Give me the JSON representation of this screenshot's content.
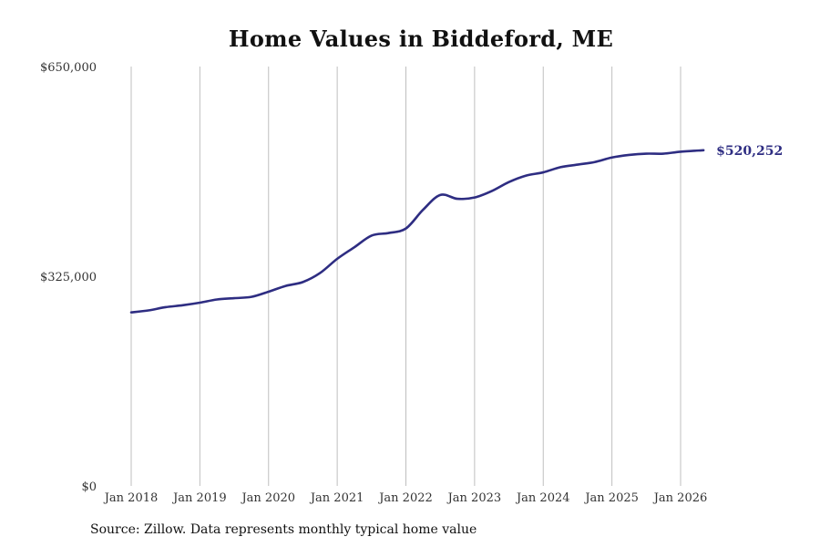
{
  "chart_data": {
    "type": "line",
    "title": "Home Values in Biddeford, ME",
    "source": "Source: Zillow. Data represents monthly typical home value",
    "y_axis": {
      "min": 0,
      "max": 650000,
      "ticks": [
        0,
        325000,
        650000
      ],
      "tick_labels": [
        "$0",
        "$325,000",
        "$650,000"
      ]
    },
    "x_axis": {
      "tick_labels": [
        "Jan 2018",
        "Jan 2019",
        "Jan 2020",
        "Jan 2021",
        "Jan 2022",
        "Jan 2023",
        "Jan 2024",
        "Jan 2025",
        "Jan 2026"
      ],
      "tick_dates": [
        "2018-01",
        "2019-01",
        "2020-01",
        "2021-01",
        "2022-01",
        "2023-01",
        "2024-01",
        "2025-01",
        "2026-01"
      ]
    },
    "grid": {
      "vertical": true,
      "horizontal": false
    },
    "colors": {
      "line": "#2e2d82",
      "grid": "#bfbfbf",
      "text": "#333333"
    },
    "series": [
      {
        "name": "",
        "end_label": "$520,252",
        "points": [
          {
            "x": "2018-01",
            "y": 269000
          },
          {
            "x": "2018-04",
            "y": 272000
          },
          {
            "x": "2018-07",
            "y": 277000
          },
          {
            "x": "2018-10",
            "y": 280000
          },
          {
            "x": "2019-01",
            "y": 284000
          },
          {
            "x": "2019-04",
            "y": 289000
          },
          {
            "x": "2019-07",
            "y": 291000
          },
          {
            "x": "2019-10",
            "y": 293000
          },
          {
            "x": "2020-01",
            "y": 301000
          },
          {
            "x": "2020-04",
            "y": 310000
          },
          {
            "x": "2020-07",
            "y": 316000
          },
          {
            "x": "2020-10",
            "y": 330000
          },
          {
            "x": "2021-01",
            "y": 352000
          },
          {
            "x": "2021-04",
            "y": 370000
          },
          {
            "x": "2021-07",
            "y": 388000
          },
          {
            "x": "2021-10",
            "y": 392000
          },
          {
            "x": "2022-01",
            "y": 399000
          },
          {
            "x": "2022-04",
            "y": 428000
          },
          {
            "x": "2022-07",
            "y": 451000
          },
          {
            "x": "2022-10",
            "y": 445000
          },
          {
            "x": "2023-01",
            "y": 447000
          },
          {
            "x": "2023-04",
            "y": 457000
          },
          {
            "x": "2023-07",
            "y": 471000
          },
          {
            "x": "2023-10",
            "y": 481000
          },
          {
            "x": "2024-01",
            "y": 486000
          },
          {
            "x": "2024-04",
            "y": 494000
          },
          {
            "x": "2024-07",
            "y": 498000
          },
          {
            "x": "2024-10",
            "y": 502000
          },
          {
            "x": "2025-01",
            "y": 509000
          },
          {
            "x": "2025-04",
            "y": 513000
          },
          {
            "x": "2025-07",
            "y": 515000
          },
          {
            "x": "2025-10",
            "y": 515000
          },
          {
            "x": "2026-01",
            "y": 518000
          },
          {
            "x": "2026-05",
            "y": 520252
          }
        ]
      }
    ]
  }
}
